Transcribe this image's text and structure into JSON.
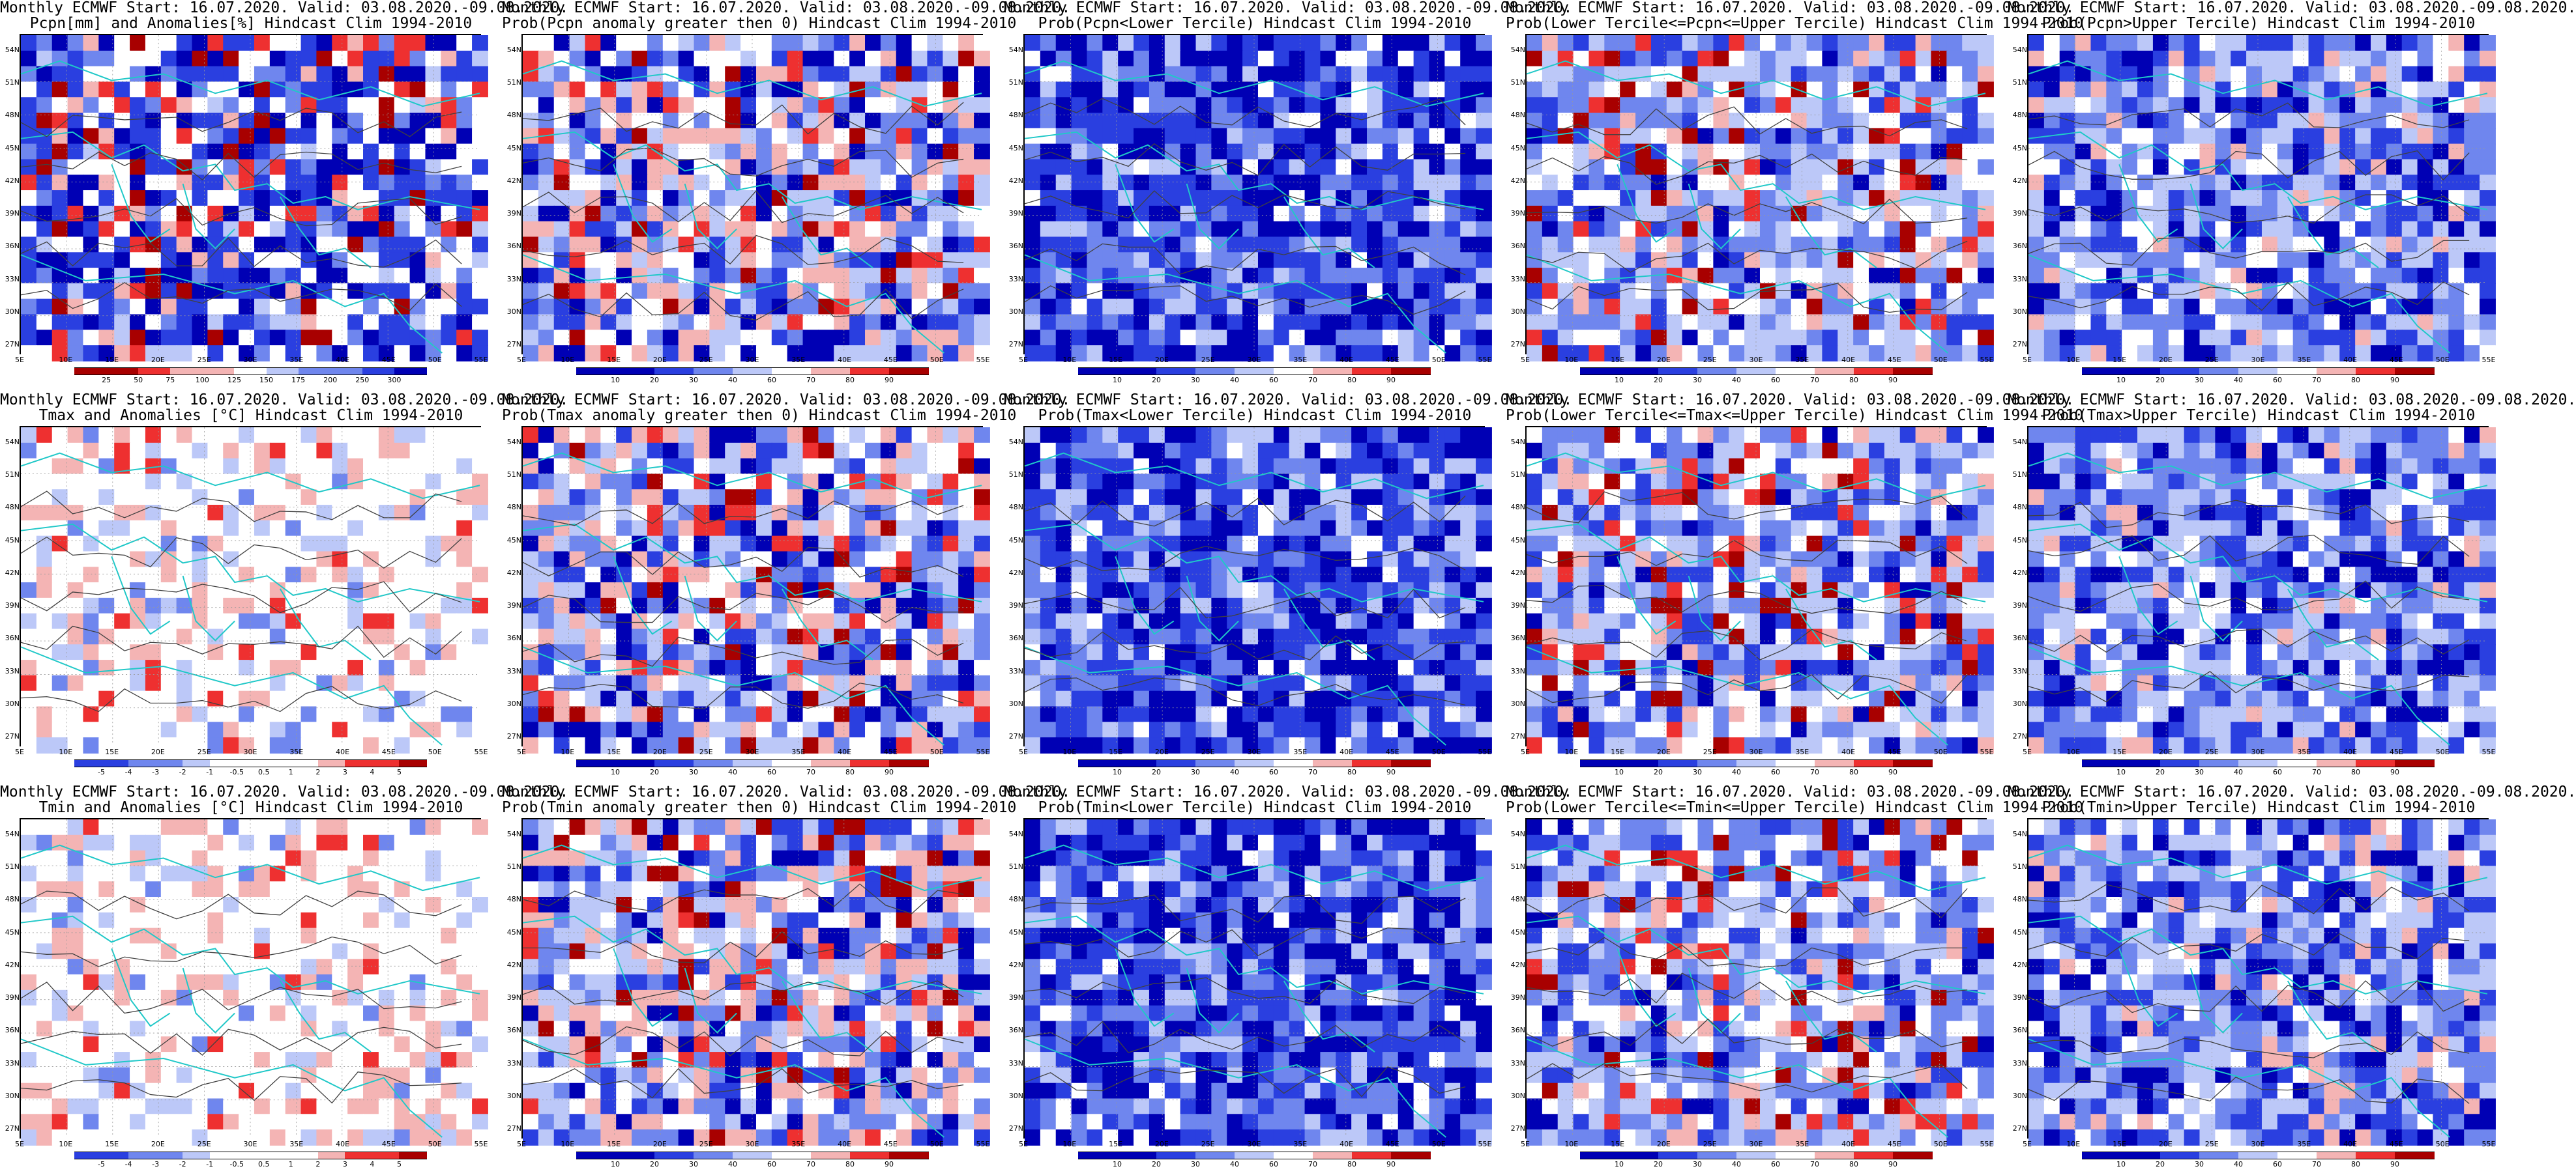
{
  "panels": [
    {
      "line1": "Monthly ECMWF Start: 16.07.2020. Valid: 03.08.2020.-09.08.2020.",
      "line2": "Pcpn[mm] and Anomalies[%] Hindcast Clim 1994-2010",
      "variable": "pcpn-anom",
      "ticks": [
        "25",
        "50",
        "75",
        "100",
        "125",
        "150",
        "175",
        "200",
        "250",
        "300"
      ]
    },
    {
      "line1": "Monthly ECMWF Start: 16.07.2020. Valid: 03.08.2020.-09.08.2020.",
      "line2": "Prob(Pcpn anomaly greater then 0) Hindcast Clim 1994-2010",
      "variable": "prob-gt0",
      "ticks": [
        "10",
        "20",
        "30",
        "40",
        "60",
        "70",
        "80",
        "90"
      ]
    },
    {
      "line1": "Monthly ECMWF Start: 16.07.2020. Valid: 03.08.2020.-09.08.2020.",
      "line2": "Prob(Pcpn<Lower Tercile) Hindcast Clim 1994-2010",
      "variable": "prob-lower",
      "ticks": [
        "10",
        "20",
        "30",
        "40",
        "60",
        "70",
        "80",
        "90"
      ]
    },
    {
      "line1": "Monthly ECMWF Start: 16.07.2020. Valid: 03.08.2020.-09.08.2020.",
      "line2": "Prob(Lower Tercile<=Pcpn<=Upper Tercile) Hindcast Clim 1994-2010",
      "variable": "prob-middle",
      "ticks": [
        "10",
        "20",
        "30",
        "40",
        "60",
        "70",
        "80",
        "90"
      ]
    },
    {
      "line1": "Monthly ECMWF Start: 16.07.2020. Valid: 03.08.2020.-09.08.2020.",
      "line2": "Prob(Pcpn>Upper Tercile) Hindcast Clim 1994-2010",
      "variable": "prob-upper",
      "ticks": [
        "10",
        "20",
        "30",
        "40",
        "60",
        "70",
        "80",
        "90"
      ]
    },
    {
      "line1": "Monthly ECMWF Start: 16.07.2020. Valid: 03.08.2020.-09.08.2020.",
      "line2": "Tmax and Anomalies [°C] Hindcast Clim 1994-2010",
      "variable": "temp-anom",
      "ticks": [
        "-5",
        "-4",
        "-3",
        "-2",
        "-1",
        "-0.5",
        "0.5",
        "1",
        "2",
        "3",
        "4",
        "5"
      ]
    },
    {
      "line1": "Monthly ECMWF Start: 16.07.2020. Valid: 03.08.2020.-09.08.2020.",
      "line2": "Prob(Tmax anomaly greater then 0) Hindcast Clim 1994-2010",
      "variable": "prob-gt0",
      "ticks": [
        "10",
        "20",
        "30",
        "40",
        "60",
        "70",
        "80",
        "90"
      ]
    },
    {
      "line1": "Monthly ECMWF Start: 16.07.2020. Valid: 03.08.2020.-09.08.2020.",
      "line2": "Prob(Tmax<Lower Tercile) Hindcast Clim 1994-2010",
      "variable": "prob-lower",
      "ticks": [
        "10",
        "20",
        "30",
        "40",
        "60",
        "70",
        "80",
        "90"
      ]
    },
    {
      "line1": "Monthly ECMWF Start: 16.07.2020. Valid: 03.08.2020.-09.08.2020.",
      "line2": "Prob(Lower Tercile<=Tmax<=Upper Tercile) Hindcast Clim 1994-2010",
      "variable": "prob-middle",
      "ticks": [
        "10",
        "20",
        "30",
        "40",
        "60",
        "70",
        "80",
        "90"
      ]
    },
    {
      "line1": "Monthly ECMWF Start: 16.07.2020. Valid: 03.08.2020.-09.08.2020.",
      "line2": "Prob(Tmax>Upper Tercile) Hindcast Clim 1994-2010",
      "variable": "prob-upper",
      "ticks": [
        "10",
        "20",
        "30",
        "40",
        "60",
        "70",
        "80",
        "90"
      ]
    },
    {
      "line1": "Monthly ECMWF Start: 16.07.2020. Valid: 03.08.2020.-09.08.2020.",
      "line2": "Tmin and Anomalies [°C] Hindcast Clim 1994-2010",
      "variable": "temp-anom",
      "ticks": [
        "-5",
        "-4",
        "-3",
        "-2",
        "-1",
        "-0.5",
        "0.5",
        "1",
        "2",
        "3",
        "4",
        "5"
      ]
    },
    {
      "line1": "Monthly ECMWF Start: 16.07.2020. Valid: 03.08.2020.-09.08.2020.",
      "line2": "Prob(Tmin anomaly greater then 0) Hindcast Clim 1994-2010",
      "variable": "prob-gt0",
      "ticks": [
        "10",
        "20",
        "30",
        "40",
        "60",
        "70",
        "80",
        "90"
      ]
    },
    {
      "line1": "Monthly ECMWF Start: 16.07.2020. Valid: 03.08.2020.-09.08.2020.",
      "line2": "Prob(Tmin<Lower Tercile) Hindcast Clim 1994-2010",
      "variable": "prob-lower",
      "ticks": [
        "10",
        "20",
        "30",
        "40",
        "60",
        "70",
        "80",
        "90"
      ]
    },
    {
      "line1": "Monthly ECMWF Start: 16.07.2020. Valid: 03.08.2020.-09.08.2020.",
      "line2": "Prob(Lower Tercile<=Tmin<=Upper Tercile) Hindcast Clim 1994-2010",
      "variable": "prob-middle",
      "ticks": [
        "10",
        "20",
        "30",
        "40",
        "60",
        "70",
        "80",
        "90"
      ]
    },
    {
      "line1": "Monthly ECMWF Start: 16.07.2020. Valid: 03.08.2020.-09.08.2020.",
      "line2": "Prob(Tmin>Upper Tercile) Hindcast Clim 1994-2010",
      "variable": "prob-upper",
      "ticks": [
        "10",
        "20",
        "30",
        "40",
        "60",
        "70",
        "80",
        "90"
      ]
    }
  ],
  "lat_labels": [
    "54N",
    "51N",
    "48N",
    "45N",
    "42N",
    "39N",
    "36N",
    "33N",
    "30N",
    "27N"
  ],
  "lon_labels": [
    "5E",
    "10E",
    "15E",
    "20E",
    "25E",
    "30E",
    "35E",
    "40E",
    "45E",
    "50E",
    "55E"
  ],
  "colors": {
    "blue_dark": "#0000b4",
    "blue": "#2a3fe0",
    "blue_mid": "#6f86ee",
    "blue_light": "#bcc8f8",
    "red_light": "#f4b4b4",
    "red": "#ee3030",
    "red_dark": "#a80000",
    "coast": "#20c8c8",
    "contour": "#404040"
  }
}
